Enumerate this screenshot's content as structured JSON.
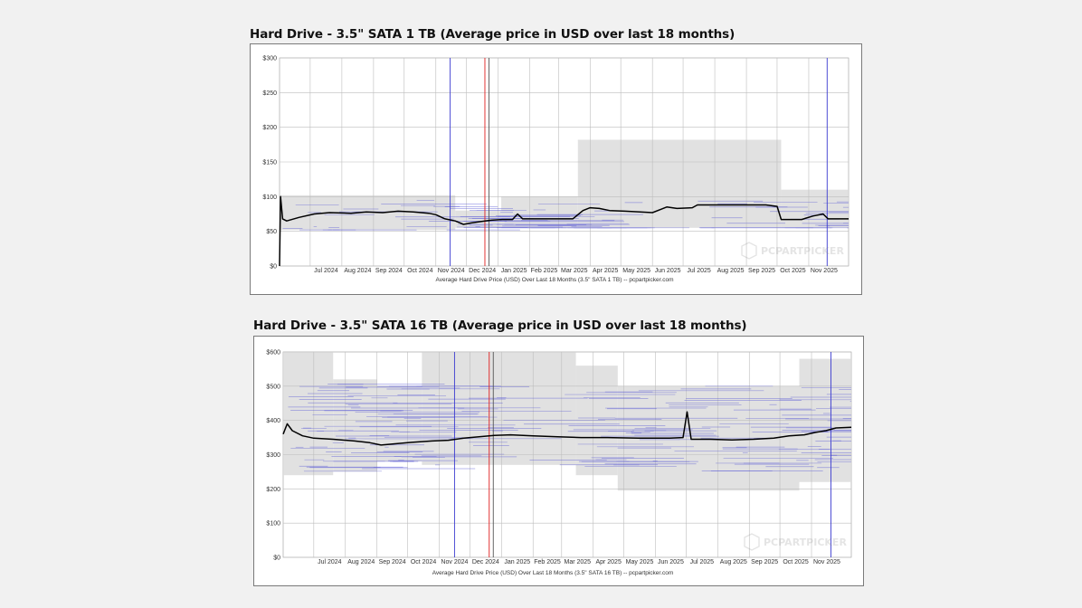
{
  "charts": [
    {
      "title": "Hard Drive - 3.5\" SATA 1 TB (Average price in USD over last 18 months)",
      "caption": "Average Hard Drive Price (USD) Over Last 18 Months (3.5\" SATA 1 TB) -- pcpartpicker.com",
      "watermark": "PCPARTPICKER"
    },
    {
      "title": "Hard Drive - 3.5\" SATA 16 TB (Average price in USD over last 18 months)",
      "caption": "Average Hard Drive Price (USD) Over Last 18 Months (3.5\" SATA 16 TB) -- pcpartpicker.com",
      "watermark": "PCPARTPICKER"
    }
  ],
  "colors": {
    "average_line": "#000000",
    "price_band": "#dcdcdc",
    "retailer_lines": "#5b5bd6",
    "marker_red": "#e02020",
    "marker_blue": "#3a3ad0",
    "grid": "#bdbdbd"
  },
  "chart_data": [
    {
      "type": "line",
      "title": "Hard Drive - 3.5\" SATA 1 TB (Average price in USD over last 18 months)",
      "xlabel": "Average Hard Drive Price (USD) Over Last 18 Months (3.5\" SATA 1 TB) -- pcpartpicker.com",
      "ylabel": "",
      "x_range": [
        "2024-06-01",
        "2025-12-10"
      ],
      "ylim": [
        0,
        300
      ],
      "y_ticks": [
        "$0",
        "$50",
        "$100",
        "$150",
        "$200",
        "$250",
        "$300"
      ],
      "x_ticks": [
        "Jul 2024",
        "Aug 2024",
        "Sep 2024",
        "Oct 2024",
        "Nov 2024",
        "Dec 2024",
        "Jan 2025",
        "Feb 2025",
        "Mar 2025",
        "Apr 2025",
        "May 2025",
        "Jun 2025",
        "Jul 2025",
        "Aug 2025",
        "Sep 2025",
        "Oct 2025",
        "Nov 2025"
      ],
      "grid": true,
      "series": [
        {
          "values": [
            [
              "2024-06-01",
              0
            ],
            [
              "2024-06-02",
              100
            ],
            [
              "2024-06-04",
              68
            ],
            [
              "2024-06-08",
              65
            ],
            [
              "2024-06-20",
              70
            ],
            [
              "2024-07-05",
              75
            ],
            [
              "2024-07-20",
              77
            ],
            [
              "2024-08-10",
              76
            ],
            [
              "2024-08-25",
              78
            ],
            [
              "2024-09-10",
              77
            ],
            [
              "2024-09-25",
              79
            ],
            [
              "2024-10-10",
              78
            ],
            [
              "2024-10-25",
              76
            ],
            [
              "2024-11-01",
              74
            ],
            [
              "2024-11-10",
              68
            ],
            [
              "2024-11-20",
              65
            ],
            [
              "2024-11-28",
              60
            ],
            [
              "2024-12-05",
              62
            ],
            [
              "2024-12-15",
              64
            ],
            [
              "2024-12-25",
              66
            ],
            [
              "2025-01-05",
              67
            ],
            [
              "2025-01-15",
              67
            ],
            [
              "2025-01-20",
              75
            ],
            [
              "2025-01-25",
              68
            ],
            [
              "2025-02-10",
              68
            ],
            [
              "2025-03-01",
              68
            ],
            [
              "2025-03-15",
              68
            ],
            [
              "2025-03-25",
              80
            ],
            [
              "2025-04-01",
              84
            ],
            [
              "2025-04-10",
              83
            ],
            [
              "2025-04-20",
              80
            ],
            [
              "2025-05-05",
              79
            ],
            [
              "2025-05-20",
              78
            ],
            [
              "2025-06-01",
              77
            ],
            [
              "2025-06-10",
              82
            ],
            [
              "2025-06-15",
              85
            ],
            [
              "2025-06-25",
              83
            ],
            [
              "2025-07-10",
              84
            ],
            [
              "2025-07-15",
              88
            ],
            [
              "2025-08-10",
              88
            ],
            [
              "2025-09-01",
              88
            ],
            [
              "2025-09-20",
              88
            ],
            [
              "2025-10-01",
              86
            ],
            [
              "2025-10-05",
              67
            ],
            [
              "2025-10-25",
              67
            ],
            [
              "2025-11-05",
              72
            ],
            [
              "2025-11-15",
              75
            ],
            [
              "2025-11-20",
              68
            ],
            [
              "2025-12-10",
              68
            ]
          ]
        }
      ]
    },
    {
      "type": "line",
      "title": "Hard Drive - 3.5\" SATA 16 TB (Average price in USD over last 18 months)",
      "xlabel": "Average Hard Drive Price (USD) Over Last 18 Months (3.5\" SATA 16 TB) -- pcpartpicker.com",
      "ylabel": "",
      "x_range": [
        "2024-06-01",
        "2025-12-10"
      ],
      "ylim": [
        0,
        600
      ],
      "y_ticks": [
        "$0",
        "$100",
        "$200",
        "$300",
        "$400",
        "$500",
        "$600"
      ],
      "x_ticks": [
        "Jul 2024",
        "Aug 2024",
        "Sep 2024",
        "Oct 2024",
        "Nov 2024",
        "Dec 2024",
        "Jan 2025",
        "Feb 2025",
        "Mar 2025",
        "Apr 2025",
        "May 2025",
        "Jun 2025",
        "Jul 2025",
        "Aug 2025",
        "Sep 2025",
        "Oct 2025",
        "Nov 2025"
      ],
      "grid": true,
      "series": [
        {
          "values": [
            [
              "2024-06-01",
              360
            ],
            [
              "2024-06-05",
              390
            ],
            [
              "2024-06-10",
              370
            ],
            [
              "2024-06-20",
              355
            ],
            [
              "2024-07-01",
              348
            ],
            [
              "2024-07-20",
              345
            ],
            [
              "2024-08-10",
              340
            ],
            [
              "2024-08-25",
              335
            ],
            [
              "2024-09-05",
              328
            ],
            [
              "2024-09-20",
              332
            ],
            [
              "2024-10-05",
              336
            ],
            [
              "2024-10-25",
              340
            ],
            [
              "2024-11-10",
              342
            ],
            [
              "2024-11-25",
              348
            ],
            [
              "2024-12-10",
              352
            ],
            [
              "2024-12-25",
              356
            ],
            [
              "2025-01-10",
              358
            ],
            [
              "2025-02-01",
              355
            ],
            [
              "2025-02-25",
              352
            ],
            [
              "2025-03-20",
              350
            ],
            [
              "2025-04-15",
              350
            ],
            [
              "2025-05-15",
              348
            ],
            [
              "2025-06-15",
              348
            ],
            [
              "2025-06-28",
              350
            ],
            [
              "2025-07-02",
              425
            ],
            [
              "2025-07-06",
              345
            ],
            [
              "2025-07-25",
              345
            ],
            [
              "2025-08-15",
              343
            ],
            [
              "2025-09-05",
              345
            ],
            [
              "2025-09-25",
              348
            ],
            [
              "2025-10-10",
              355
            ],
            [
              "2025-10-25",
              358
            ],
            [
              "2025-11-05",
              365
            ],
            [
              "2025-11-15",
              370
            ],
            [
              "2025-11-25",
              378
            ],
            [
              "2025-12-10",
              380
            ]
          ]
        }
      ]
    }
  ]
}
